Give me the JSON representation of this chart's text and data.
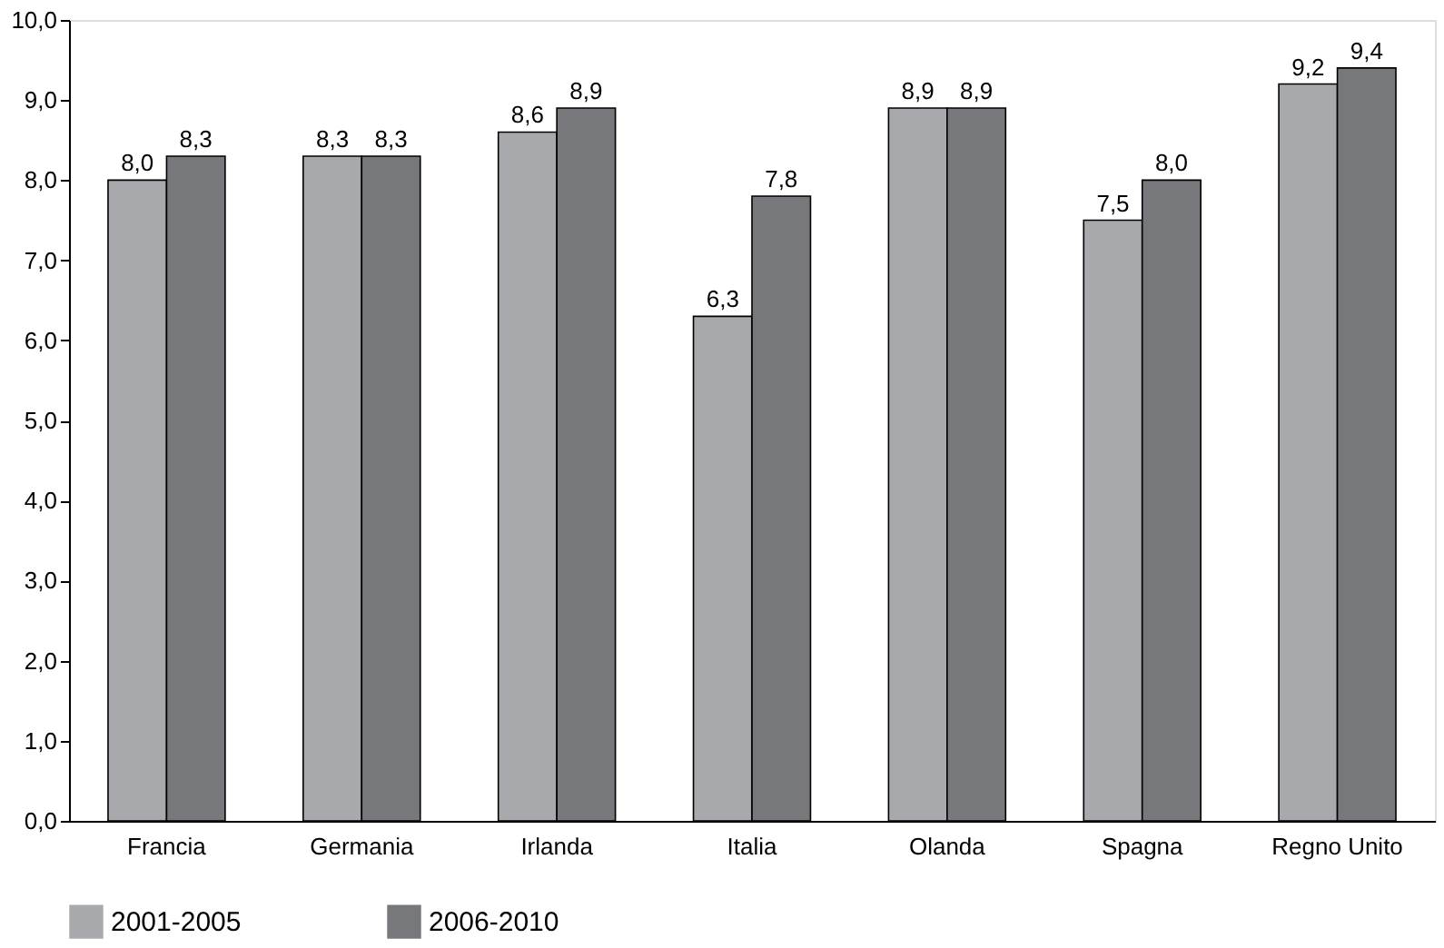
{
  "chart_data": {
    "type": "bar",
    "categories": [
      "Francia",
      "Germania",
      "Irlanda",
      "Italia",
      "Olanda",
      "Spagna",
      "Regno Unito"
    ],
    "series": [
      {
        "name": "2001-2005",
        "color": "#a7a9ac",
        "values": [
          8.0,
          8.3,
          8.6,
          6.3,
          8.9,
          7.5,
          9.2
        ],
        "value_labels": [
          "8,0",
          "8,3",
          "8,6",
          "6,3",
          "8,9",
          "7,5",
          "9,2"
        ]
      },
      {
        "name": "2006-2010",
        "color": "#77787b",
        "values": [
          8.3,
          8.3,
          8.9,
          7.8,
          8.9,
          8.0,
          9.4
        ],
        "value_labels": [
          "8,3",
          "8,3",
          "8,9",
          "7,8",
          "8,9",
          "8,0",
          "9,4"
        ]
      }
    ],
    "ylim": [
      0,
      10
    ],
    "yticks": [
      {
        "value": 0,
        "label": "0,0"
      },
      {
        "value": 1,
        "label": "1,0"
      },
      {
        "value": 2,
        "label": "2,0"
      },
      {
        "value": 3,
        "label": "3,0"
      },
      {
        "value": 4,
        "label": "4,0"
      },
      {
        "value": 5,
        "label": "5,0"
      },
      {
        "value": 6,
        "label": "6,0"
      },
      {
        "value": 7,
        "label": "7,0"
      },
      {
        "value": 8,
        "label": "8,0"
      },
      {
        "value": 9,
        "label": "9,0"
      },
      {
        "value": 10,
        "label": "10,0"
      }
    ],
    "grid": false,
    "legend": "bottom"
  }
}
